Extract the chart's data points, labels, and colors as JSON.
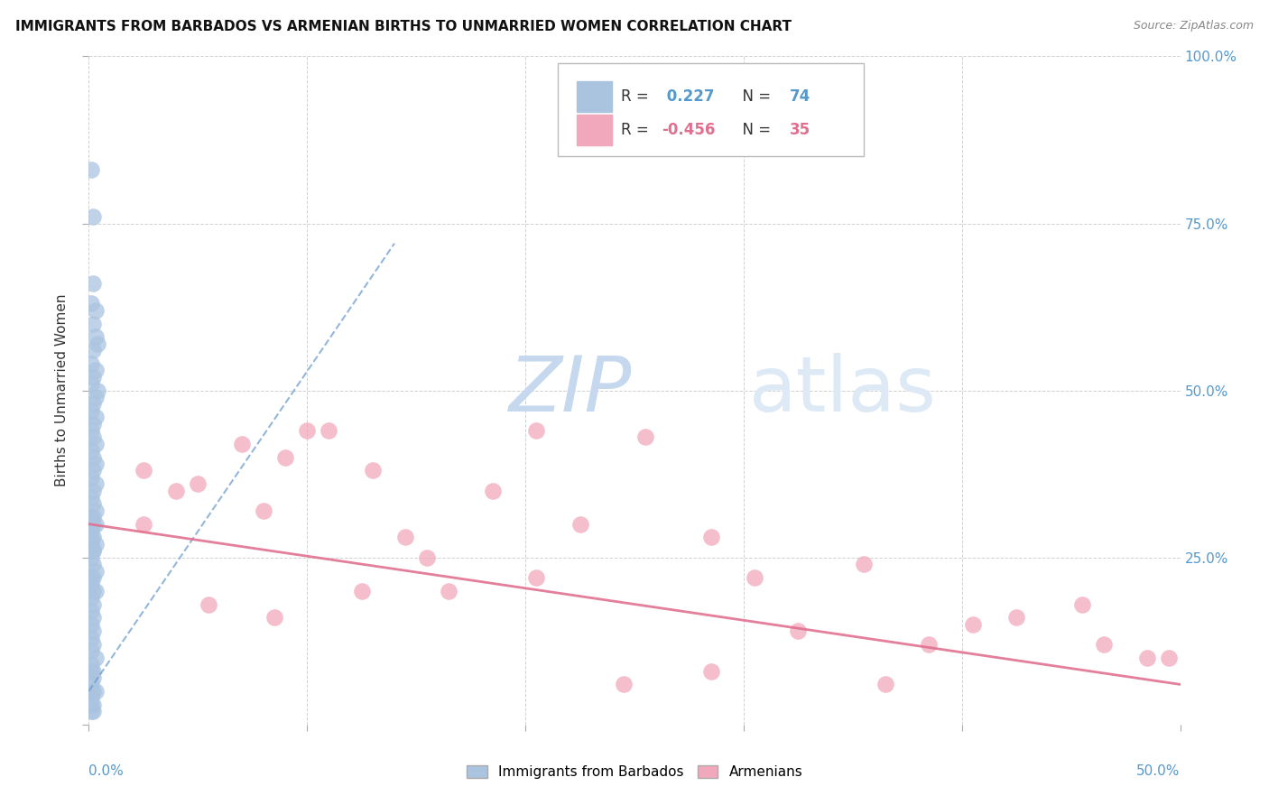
{
  "title": "IMMIGRANTS FROM BARBADOS VS ARMENIAN BIRTHS TO UNMARRIED WOMEN CORRELATION CHART",
  "source": "Source: ZipAtlas.com",
  "ylabel": "Births to Unmarried Women",
  "ylabel_right_ticks": [
    "100.0%",
    "75.0%",
    "50.0%",
    "25.0%"
  ],
  "ylabel_right_vals": [
    1.0,
    0.75,
    0.5,
    0.25
  ],
  "xlim": [
    0.0,
    0.5
  ],
  "ylim": [
    0.0,
    1.0
  ],
  "blue_color": "#aac4e0",
  "pink_color": "#f2a8bc",
  "blue_line_color": "#6699cc",
  "pink_line_color": "#e07090",
  "legend_blue_r": "0.227",
  "legend_blue_n": "74",
  "legend_pink_r": "-0.456",
  "legend_pink_n": "35",
  "blue_scatter_x": [
    0.001,
    0.002,
    0.002,
    0.001,
    0.003,
    0.002,
    0.003,
    0.004,
    0.002,
    0.001,
    0.003,
    0.002,
    0.001,
    0.004,
    0.003,
    0.002,
    0.001,
    0.003,
    0.002,
    0.001,
    0.002,
    0.003,
    0.001,
    0.002,
    0.003,
    0.002,
    0.001,
    0.003,
    0.002,
    0.001,
    0.002,
    0.003,
    0.001,
    0.002,
    0.003,
    0.001,
    0.002,
    0.001,
    0.003,
    0.002,
    0.001,
    0.002,
    0.003,
    0.001,
    0.002,
    0.001,
    0.002,
    0.003,
    0.001,
    0.002,
    0.001,
    0.002,
    0.001,
    0.002,
    0.001,
    0.002,
    0.001,
    0.003,
    0.001,
    0.002,
    0.001,
    0.002,
    0.001,
    0.002,
    0.003,
    0.001,
    0.002,
    0.001,
    0.002,
    0.001,
    0.002,
    0.001,
    0.002,
    0.001
  ],
  "blue_scatter_y": [
    0.83,
    0.76,
    0.66,
    0.63,
    0.62,
    0.6,
    0.58,
    0.57,
    0.56,
    0.54,
    0.53,
    0.52,
    0.51,
    0.5,
    0.49,
    0.48,
    0.47,
    0.46,
    0.45,
    0.44,
    0.43,
    0.42,
    0.41,
    0.4,
    0.39,
    0.38,
    0.37,
    0.36,
    0.35,
    0.34,
    0.33,
    0.32,
    0.31,
    0.3,
    0.3,
    0.29,
    0.28,
    0.27,
    0.27,
    0.26,
    0.25,
    0.24,
    0.23,
    0.22,
    0.22,
    0.21,
    0.2,
    0.2,
    0.19,
    0.18,
    0.17,
    0.16,
    0.15,
    0.14,
    0.13,
    0.12,
    0.11,
    0.1,
    0.09,
    0.08,
    0.08,
    0.07,
    0.06,
    0.05,
    0.05,
    0.04,
    0.03,
    0.03,
    0.02,
    0.02,
    0.31,
    0.28,
    0.26,
    0.05
  ],
  "blue_line_x": [
    0.0,
    0.14
  ],
  "blue_line_y": [
    0.05,
    0.72
  ],
  "pink_scatter_x": [
    0.025,
    0.07,
    0.05,
    0.09,
    0.04,
    0.11,
    0.08,
    0.13,
    0.1,
    0.155,
    0.205,
    0.255,
    0.145,
    0.185,
    0.225,
    0.285,
    0.305,
    0.355,
    0.385,
    0.405,
    0.455,
    0.485,
    0.325,
    0.025,
    0.055,
    0.085,
    0.125,
    0.165,
    0.205,
    0.245,
    0.285,
    0.425,
    0.465,
    0.495,
    0.365
  ],
  "pink_scatter_y": [
    0.38,
    0.42,
    0.36,
    0.4,
    0.35,
    0.44,
    0.32,
    0.38,
    0.44,
    0.25,
    0.44,
    0.43,
    0.28,
    0.35,
    0.3,
    0.28,
    0.22,
    0.24,
    0.12,
    0.15,
    0.18,
    0.1,
    0.14,
    0.3,
    0.18,
    0.16,
    0.2,
    0.2,
    0.22,
    0.06,
    0.08,
    0.16,
    0.12,
    0.1,
    0.06
  ],
  "pink_line_x": [
    0.0,
    0.5
  ],
  "pink_line_y": [
    0.3,
    0.06
  ]
}
